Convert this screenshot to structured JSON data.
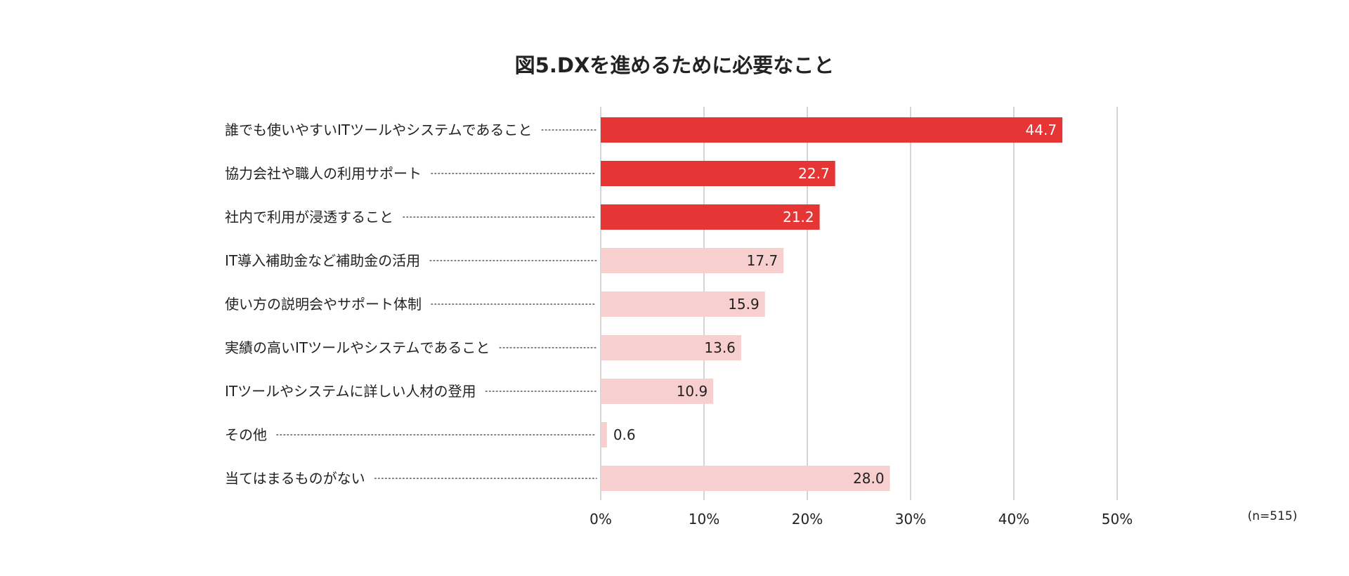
{
  "chart_data": {
    "type": "bar",
    "orientation": "horizontal",
    "title": "図5.DXを進めるために必要なこと",
    "categories": [
      "誰でも使いやすいITツールやシステムであること",
      "協力会社や職人の利用サポート",
      "社内で利用が浸透すること",
      "IT導入補助金など補助金の活用",
      "使い方の説明会やサポート体制",
      "実績の高いITツールやシステムであること",
      "ITツールやシステムに詳しい人材の登用",
      "その他",
      "当てはまるものがない"
    ],
    "values": [
      44.7,
      22.7,
      21.2,
      17.7,
      15.9,
      13.6,
      10.9,
      0.6,
      28.0
    ],
    "value_labels": [
      "44.7",
      "22.7",
      "21.2",
      "17.7",
      "15.9",
      "13.6",
      "10.9",
      "0.6",
      "28.0"
    ],
    "highlight": [
      true,
      true,
      true,
      false,
      false,
      false,
      false,
      false,
      false
    ],
    "x_ticks": [
      0,
      10,
      20,
      30,
      40,
      50
    ],
    "x_tick_labels": [
      "0%",
      "10%",
      "20%",
      "30%",
      "40%",
      "50%"
    ],
    "xlim": [
      0,
      50
    ],
    "xlabel": "",
    "ylabel": "",
    "grid": true,
    "legend": "none",
    "note": "(n=515)"
  },
  "colors": {
    "highlight_bar": "#e63535",
    "normal_bar": "#f8cfcf",
    "highlight_text": "#ffffff",
    "normal_text": "#222222",
    "grid": "#b9b9b9",
    "leader": "#555555"
  }
}
